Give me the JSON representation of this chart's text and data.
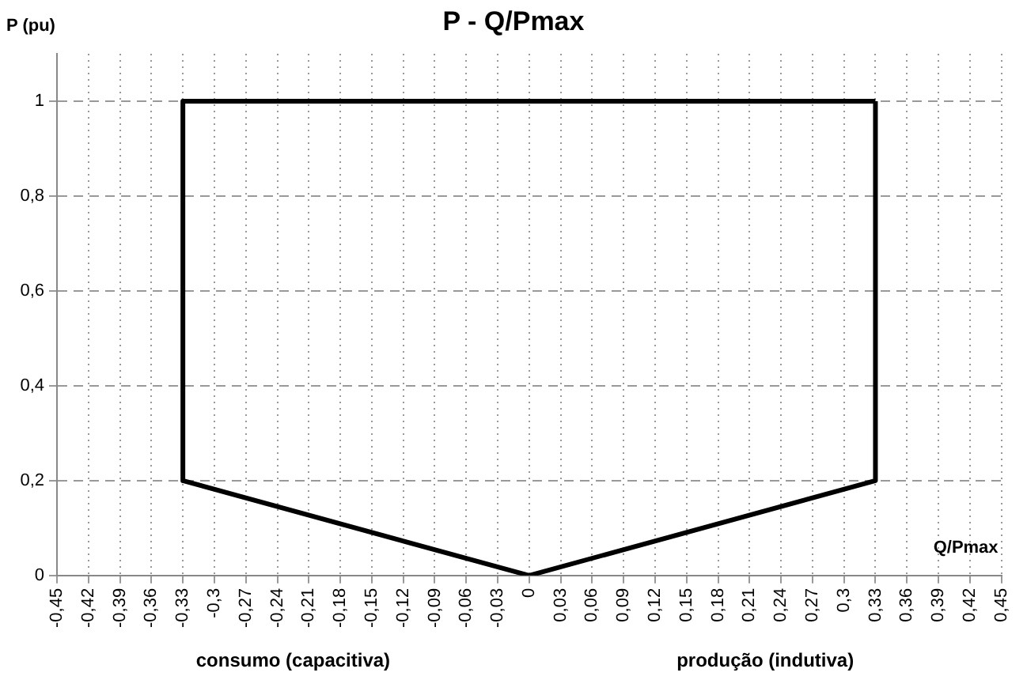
{
  "chart_data": {
    "type": "line",
    "title": "P - Q/Pmax",
    "xlabel": "Q/Pmax",
    "ylabel": "P (pu)",
    "annotations": [
      "consumo (capacitiva)",
      "produção (indutiva)"
    ],
    "series": [
      {
        "color": "#000000",
        "x": [
          -0.33,
          -0.33,
          0,
          0.33,
          0.33
        ],
        "values": [
          1,
          0.2,
          0,
          0.2,
          1
        ]
      },
      {
        "color": "#000000",
        "x": [
          -0.33,
          0.33
        ],
        "values": [
          1,
          1
        ]
      }
    ],
    "xlim": [
      -0.45,
      0.45
    ],
    "xticks": [
      {
        "value": -0.45,
        "label": "-0,45"
      },
      {
        "value": -0.42,
        "label": "-0,42"
      },
      {
        "value": -0.39,
        "label": "-0,39"
      },
      {
        "value": -0.36,
        "label": "-0,36"
      },
      {
        "value": -0.33,
        "label": "-0,33"
      },
      {
        "value": -0.3,
        "label": "-0,3"
      },
      {
        "value": -0.27,
        "label": "-0,27"
      },
      {
        "value": -0.24,
        "label": "-0,24"
      },
      {
        "value": -0.21,
        "label": "-0,21"
      },
      {
        "value": -0.18,
        "label": "-0,18"
      },
      {
        "value": -0.15,
        "label": "-0,15"
      },
      {
        "value": -0.12,
        "label": "-0,12"
      },
      {
        "value": -0.09,
        "label": "-0,09"
      },
      {
        "value": -0.06,
        "label": "-0,06"
      },
      {
        "value": -0.03,
        "label": "-0,03"
      },
      0,
      {
        "value": 0.03,
        "label": "0,03"
      },
      {
        "value": 0.06,
        "label": "0,06"
      },
      {
        "value": 0.09,
        "label": "0,09"
      },
      {
        "value": 0.12,
        "label": "0,12"
      },
      {
        "value": 0.15,
        "label": "0,15"
      },
      {
        "value": 0.18,
        "label": "0,18"
      },
      {
        "value": 0.21,
        "label": "0,21"
      },
      {
        "value": 0.24,
        "label": "0,24"
      },
      {
        "value": 0.27,
        "label": "0,27"
      },
      {
        "value": 0.3,
        "label": "0,3"
      },
      {
        "value": 0.33,
        "label": "0,33"
      },
      {
        "value": 0.36,
        "label": "0,36"
      },
      {
        "value": 0.39,
        "label": "0,39"
      },
      {
        "value": 0.42,
        "label": "0,42"
      },
      {
        "value": 0.45,
        "label": "0,45"
      }
    ],
    "ylim": [
      0,
      1.1
    ],
    "yticks": [
      0,
      {
        "value": 0.2,
        "label": "0,2"
      },
      {
        "value": 0.4,
        "label": "0,4"
      },
      {
        "value": 0.6,
        "label": "0,6"
      },
      {
        "value": 0.8,
        "label": "0,8"
      },
      1
    ],
    "grid": true,
    "legend": false,
    "marker": "none",
    "line_style": "solid"
  }
}
